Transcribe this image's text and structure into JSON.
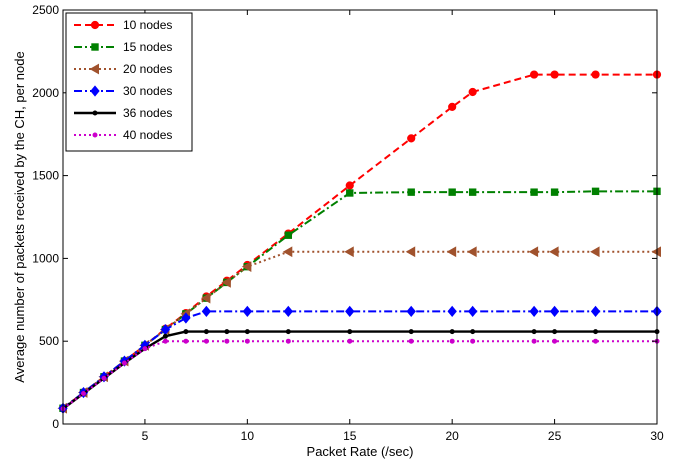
{
  "chart_data": {
    "type": "line",
    "xlabel": "Packet Rate (/sec)",
    "ylabel": "Average number of packets received by the CH, per node",
    "xlim": [
      1,
      30
    ],
    "ylim": [
      0,
      2500
    ],
    "xticks": [
      5,
      10,
      15,
      20,
      25,
      30
    ],
    "yticks": [
      0,
      500,
      1000,
      1500,
      2000,
      2500
    ],
    "grid": false,
    "legend_position": "top-left",
    "series": [
      {
        "name": "10 nodes",
        "color": "#ff0000",
        "line_style": "dashed",
        "marker": "circle",
        "points": [
          [
            1,
            95
          ],
          [
            2,
            190
          ],
          [
            3,
            285
          ],
          [
            4,
            380
          ],
          [
            5,
            475
          ],
          [
            6,
            575
          ],
          [
            7,
            670
          ],
          [
            8,
            770
          ],
          [
            9,
            865
          ],
          [
            10,
            960
          ],
          [
            12,
            1150
          ],
          [
            15,
            1440
          ],
          [
            18,
            1725
          ],
          [
            20,
            1915
          ],
          [
            21,
            2005
          ],
          [
            24,
            2110
          ],
          [
            25,
            2110
          ],
          [
            27,
            2110
          ],
          [
            30,
            2110
          ]
        ]
      },
      {
        "name": "15 nodes",
        "color": "#008000",
        "line_style": "dashdot",
        "marker": "square",
        "points": [
          [
            1,
            95
          ],
          [
            2,
            190
          ],
          [
            3,
            285
          ],
          [
            4,
            380
          ],
          [
            5,
            475
          ],
          [
            6,
            570
          ],
          [
            7,
            665
          ],
          [
            8,
            760
          ],
          [
            9,
            855
          ],
          [
            10,
            950
          ],
          [
            12,
            1140
          ],
          [
            15,
            1395
          ],
          [
            18,
            1400
          ],
          [
            20,
            1400
          ],
          [
            21,
            1400
          ],
          [
            24,
            1400
          ],
          [
            25,
            1400
          ],
          [
            27,
            1405
          ],
          [
            30,
            1405
          ]
        ]
      },
      {
        "name": "20 nodes",
        "color": "#a0522d",
        "line_style": "dotted",
        "marker": "triangle-left",
        "points": [
          [
            1,
            95
          ],
          [
            2,
            190
          ],
          [
            3,
            285
          ],
          [
            4,
            380
          ],
          [
            5,
            475
          ],
          [
            6,
            570
          ],
          [
            7,
            665
          ],
          [
            8,
            760
          ],
          [
            9,
            855
          ],
          [
            10,
            950
          ],
          [
            12,
            1040
          ],
          [
            15,
            1040
          ],
          [
            18,
            1040
          ],
          [
            20,
            1040
          ],
          [
            21,
            1040
          ],
          [
            24,
            1040
          ],
          [
            25,
            1040
          ],
          [
            27,
            1040
          ],
          [
            30,
            1040
          ]
        ]
      },
      {
        "name": "30 nodes",
        "color": "#0000ff",
        "line_style": "dashdot",
        "marker": "diamond",
        "points": [
          [
            1,
            95
          ],
          [
            2,
            190
          ],
          [
            3,
            285
          ],
          [
            4,
            380
          ],
          [
            5,
            475
          ],
          [
            6,
            570
          ],
          [
            7,
            640
          ],
          [
            8,
            680
          ],
          [
            10,
            680
          ],
          [
            12,
            680
          ],
          [
            15,
            680
          ],
          [
            18,
            680
          ],
          [
            20,
            680
          ],
          [
            21,
            680
          ],
          [
            24,
            680
          ],
          [
            25,
            680
          ],
          [
            27,
            680
          ],
          [
            30,
            680
          ]
        ]
      },
      {
        "name": "36 nodes",
        "color": "#000000",
        "line_style": "solid",
        "marker": "dot",
        "points": [
          [
            1,
            92
          ],
          [
            2,
            184
          ],
          [
            3,
            276
          ],
          [
            4,
            368
          ],
          [
            5,
            455
          ],
          [
            6,
            530
          ],
          [
            7,
            558
          ],
          [
            8,
            558
          ],
          [
            9,
            558
          ],
          [
            10,
            558
          ],
          [
            12,
            558
          ],
          [
            15,
            558
          ],
          [
            18,
            558
          ],
          [
            20,
            558
          ],
          [
            21,
            558
          ],
          [
            24,
            558
          ],
          [
            25,
            558
          ],
          [
            27,
            558
          ],
          [
            30,
            558
          ]
        ]
      },
      {
        "name": "40 nodes",
        "color": "#cc00cc",
        "line_style": "dotted",
        "marker": "dot",
        "points": [
          [
            1,
            92
          ],
          [
            2,
            184
          ],
          [
            3,
            276
          ],
          [
            4,
            368
          ],
          [
            5,
            455
          ],
          [
            6,
            500
          ],
          [
            7,
            500
          ],
          [
            8,
            500
          ],
          [
            9,
            500
          ],
          [
            10,
            500
          ],
          [
            12,
            500
          ],
          [
            15,
            500
          ],
          [
            18,
            500
          ],
          [
            20,
            500
          ],
          [
            21,
            500
          ],
          [
            24,
            500
          ],
          [
            25,
            500
          ],
          [
            27,
            500
          ],
          [
            30,
            500
          ]
        ]
      }
    ]
  }
}
